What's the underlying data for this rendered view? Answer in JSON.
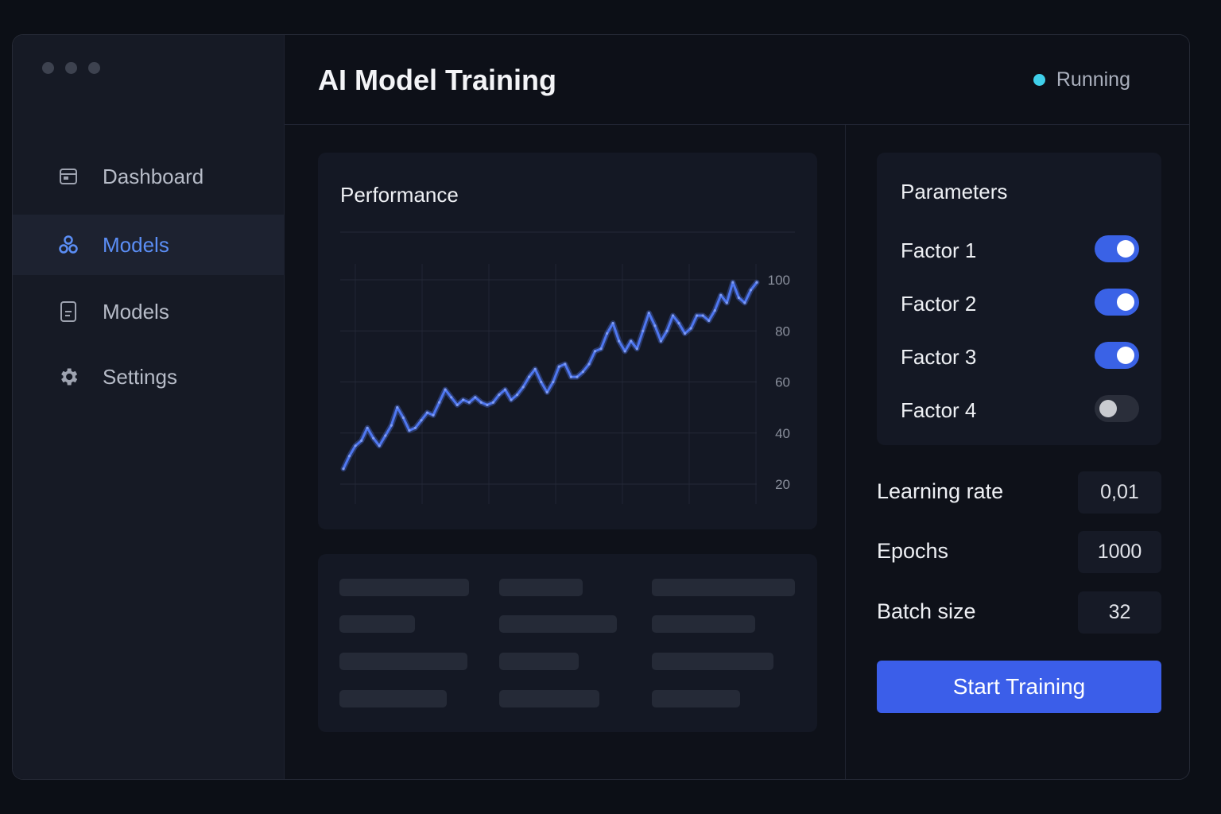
{
  "app": {
    "title": "AI Model Training",
    "status": {
      "label": "Running",
      "color": "#3fd0ea"
    }
  },
  "sidebar": {
    "items": [
      {
        "label": "Dashboard",
        "icon": "dashboard-icon",
        "active": false
      },
      {
        "label": "Models",
        "icon": "models-cluster-icon",
        "active": true
      },
      {
        "label": "Models",
        "icon": "document-icon",
        "active": false
      },
      {
        "label": "Settings",
        "icon": "gear-icon",
        "active": false
      }
    ]
  },
  "performance": {
    "title": "Performance",
    "chart_data": {
      "type": "line",
      "title": "Performance",
      "xlabel": "",
      "ylabel": "",
      "ylim": [
        20,
        100
      ],
      "yticks": [
        20,
        40,
        60,
        80,
        100
      ],
      "grid": true,
      "series": [
        {
          "color": "#4f77f0",
          "values": [
            26,
            31,
            35,
            37,
            42,
            38,
            35,
            39,
            43,
            50,
            46,
            41,
            42,
            45,
            48,
            47,
            52,
            57,
            54,
            51,
            53,
            52,
            54,
            52,
            51,
            52,
            55,
            57,
            53,
            55,
            58,
            62,
            65,
            60,
            56,
            60,
            66,
            67,
            62,
            62,
            64,
            67,
            72,
            73,
            79,
            83,
            76,
            72,
            76,
            73,
            80,
            87,
            82,
            76,
            80,
            86,
            83,
            79,
            81,
            86,
            86,
            84,
            88,
            94,
            91,
            99,
            93,
            91,
            96,
            99
          ]
        }
      ]
    }
  },
  "parameters": {
    "title": "Parameters",
    "factors": [
      {
        "label": "Factor 1",
        "enabled": true
      },
      {
        "label": "Factor 2",
        "enabled": true
      },
      {
        "label": "Factor 3",
        "enabled": true
      },
      {
        "label": "Factor 4",
        "enabled": false
      }
    ]
  },
  "fields": {
    "learning_rate": {
      "label": "Learning rate",
      "value": "0,01"
    },
    "epochs": {
      "label": "Epochs",
      "value": "1000"
    },
    "batch_size": {
      "label": "Batch size",
      "value": "32"
    }
  },
  "actions": {
    "start_label": "Start Training"
  },
  "colors": {
    "accent": "#3b5ee9",
    "active_nav": "#5b8ef5",
    "toggle_on": "#3a62e6"
  }
}
